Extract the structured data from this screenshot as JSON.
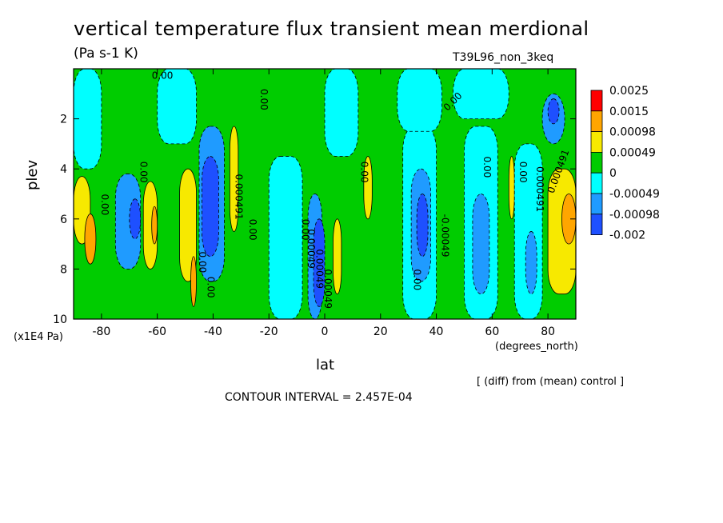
{
  "title": "vertical temperature flux transient mean merdional",
  "units": "(Pa s-1 K)",
  "run": "T39L96_non_3keq",
  "difference_note": "[ (diff) from (mean) control ]",
  "contour_interval": "CONTOUR INTERVAL = 2.457E-04",
  "chart_data": {
    "type": "heatmap",
    "xlabel": "lat",
    "x_unit": "(degrees_north)",
    "ylabel": "plev",
    "y_unit": "(x1E4 Pa)",
    "xlim": [
      -90,
      90
    ],
    "ylim": [
      10,
      0
    ],
    "x_ticks": [
      -80,
      -60,
      -40,
      -20,
      0,
      20,
      40,
      60,
      80
    ],
    "y_ticks": [
      2,
      4,
      6,
      8,
      10
    ],
    "colorbar": {
      "levels": [
        "0.0025",
        "0.0015",
        "0.00098",
        "0.00049",
        "0",
        "-0.00049",
        "-0.00098",
        "-0.002"
      ],
      "colors": [
        "#ff0000",
        "#ffa500",
        "#f7e900",
        "#00cc00",
        "#00ffff",
        "#1f9bff",
        "#1e50ff"
      ]
    },
    "contour_labels": [
      "0.00",
      "0.00",
      "0.00",
      "0.00",
      "0.00",
      "0.00",
      "0.00",
      "0.00",
      "0.00",
      "0.00",
      "0.00",
      "0.00",
      "0.00",
      "0.000491",
      "0.00049",
      "0.00049",
      "-0.00049",
      "0.00049",
      "0.000491",
      "0.000491"
    ],
    "regions": [
      {
        "x": [
          -90,
          -84
        ],
        "y": [
          4.3,
          7.0
        ],
        "v": "pos_mid"
      },
      {
        "x": [
          -86,
          -82
        ],
        "y": [
          5.8,
          7.8
        ],
        "v": "pos_high"
      },
      {
        "x": [
          -75,
          -66
        ],
        "y": [
          4.2,
          8.0
        ],
        "v": "neg_mid"
      },
      {
        "x": [
          -70,
          -66
        ],
        "y": [
          5.2,
          6.8
        ],
        "v": "neg_strong"
      },
      {
        "x": [
          -65,
          -60
        ],
        "y": [
          4.5,
          8.0
        ],
        "v": "pos_mid"
      },
      {
        "x": [
          -62,
          -60
        ],
        "y": [
          5.5,
          7.0
        ],
        "v": "pos_high"
      },
      {
        "x": [
          -52,
          -46
        ],
        "y": [
          4.0,
          8.5
        ],
        "v": "pos_mid"
      },
      {
        "x": [
          -48,
          -46
        ],
        "y": [
          7.5,
          9.5
        ],
        "v": "pos_high"
      },
      {
        "x": [
          -45,
          -36
        ],
        "y": [
          2.3,
          8.5
        ],
        "v": "neg_mid"
      },
      {
        "x": [
          -44,
          -38
        ],
        "y": [
          3.5,
          7.5
        ],
        "v": "neg_strong"
      },
      {
        "x": [
          -34,
          -31
        ],
        "y": [
          2.3,
          6.5
        ],
        "v": "pos_mid"
      },
      {
        "x": [
          -20,
          -8
        ],
        "y": [
          3.5,
          10
        ],
        "v": "neg_weak"
      },
      {
        "x": [
          -6,
          -1
        ],
        "y": [
          5.0,
          10
        ],
        "v": "neg_mid"
      },
      {
        "x": [
          -4,
          0
        ],
        "y": [
          6.0,
          9.5
        ],
        "v": "neg_strong"
      },
      {
        "x": [
          3,
          6
        ],
        "y": [
          6.0,
          9.0
        ],
        "v": "pos_mid"
      },
      {
        "x": [
          14,
          17
        ],
        "y": [
          3.5,
          6.0
        ],
        "v": "pos_mid"
      },
      {
        "x": [
          28,
          40
        ],
        "y": [
          2.3,
          10
        ],
        "v": "neg_weak"
      },
      {
        "x": [
          31,
          38
        ],
        "y": [
          4.0,
          8.5
        ],
        "v": "neg_mid"
      },
      {
        "x": [
          33,
          37
        ],
        "y": [
          5.0,
          7.5
        ],
        "v": "neg_strong"
      },
      {
        "x": [
          50,
          62
        ],
        "y": [
          2.3,
          10
        ],
        "v": "neg_weak"
      },
      {
        "x": [
          53,
          59
        ],
        "y": [
          5.0,
          9.0
        ],
        "v": "neg_mid"
      },
      {
        "x": [
          66,
          68
        ],
        "y": [
          3.5,
          6.0
        ],
        "v": "pos_mid"
      },
      {
        "x": [
          68,
          78
        ],
        "y": [
          3.0,
          10
        ],
        "v": "neg_weak"
      },
      {
        "x": [
          72,
          76
        ],
        "y": [
          6.5,
          9.0
        ],
        "v": "neg_mid"
      },
      {
        "x": [
          78,
          86
        ],
        "y": [
          1.0,
          3.0
        ],
        "v": "neg_mid"
      },
      {
        "x": [
          80,
          84
        ],
        "y": [
          1.2,
          2.2
        ],
        "v": "neg_strong"
      },
      {
        "x": [
          80,
          90
        ],
        "y": [
          4.0,
          9.0
        ],
        "v": "pos_mid"
      },
      {
        "x": [
          85,
          90
        ],
        "y": [
          5.0,
          7.0
        ],
        "v": "pos_high"
      },
      {
        "x": [
          -90,
          -80
        ],
        "y": [
          0,
          4.0
        ],
        "v": "neg_weak"
      },
      {
        "x": [
          -60,
          -46
        ],
        "y": [
          0,
          3.0
        ],
        "v": "neg_weak"
      },
      {
        "x": [
          0,
          12
        ],
        "y": [
          0,
          3.5
        ],
        "v": "neg_weak"
      },
      {
        "x": [
          26,
          42
        ],
        "y": [
          0,
          2.5
        ],
        "v": "neg_weak"
      },
      {
        "x": [
          46,
          66
        ],
        "y": [
          0,
          2.0
        ],
        "v": "neg_weak"
      }
    ]
  }
}
